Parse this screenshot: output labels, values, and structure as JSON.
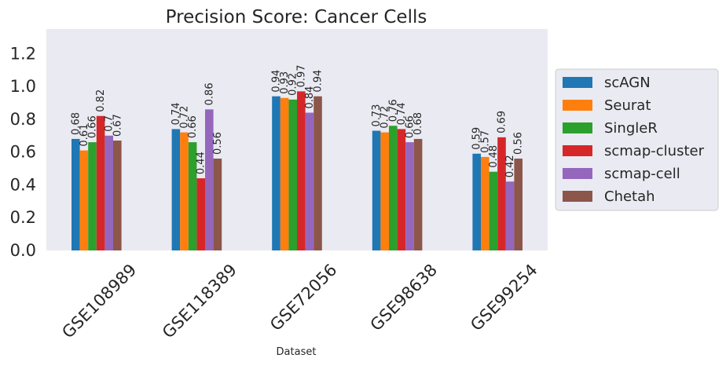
{
  "chart_data": {
    "type": "bar",
    "title": "Precision Score: Cancer Cells",
    "xlabel": "Dataset",
    "ylabel": "",
    "ylim": [
      0,
      1.35
    ],
    "yticks": [
      "0.0",
      "0.2",
      "0.4",
      "0.6",
      "0.8",
      "1.0",
      "1.2"
    ],
    "grid": false,
    "background": "#eaeaf2",
    "legend_position": "right",
    "categories": [
      "GSE108989",
      "GSE118389",
      "GSE72056",
      "GSE98638",
      "GSE99254"
    ],
    "series": [
      {
        "name": "scAGN",
        "color": "#1f77b4",
        "values": [
          0.68,
          0.74,
          0.94,
          0.73,
          0.59
        ],
        "labels": [
          "0.68",
          "0.74",
          "0.94",
          "0.73",
          "0.59"
        ]
      },
      {
        "name": "Seurat",
        "color": "#ff7f0e",
        "values": [
          0.61,
          0.72,
          0.93,
          0.72,
          0.57
        ],
        "labels": [
          "0.61",
          "0.72",
          "0.93",
          "0.72",
          "0.57"
        ]
      },
      {
        "name": "SingleR",
        "color": "#2ca02c",
        "values": [
          0.66,
          0.66,
          0.92,
          0.76,
          0.48
        ],
        "labels": [
          "0.66",
          "0.66",
          "0.92",
          "0.76",
          "0.48"
        ]
      },
      {
        "name": "scmap-cluster",
        "color": "#d62728",
        "values": [
          0.82,
          0.44,
          0.97,
          0.74,
          0.69
        ],
        "labels": [
          "0.82",
          "0.44",
          "0.97",
          "0.74",
          "0.69"
        ]
      },
      {
        "name": "scmap-cell",
        "color": "#9467bd",
        "values": [
          0.7,
          0.86,
          0.84,
          0.66,
          0.42
        ],
        "labels": [
          "0.7",
          "0.86",
          "0.84",
          "0.66",
          "0.42"
        ]
      },
      {
        "name": "Chetah",
        "color": "#8c564b",
        "values": [
          0.67,
          0.56,
          0.94,
          0.68,
          0.56
        ],
        "labels": [
          "0.67",
          "0.56",
          "0.94",
          "0.68",
          "0.56"
        ]
      }
    ]
  }
}
